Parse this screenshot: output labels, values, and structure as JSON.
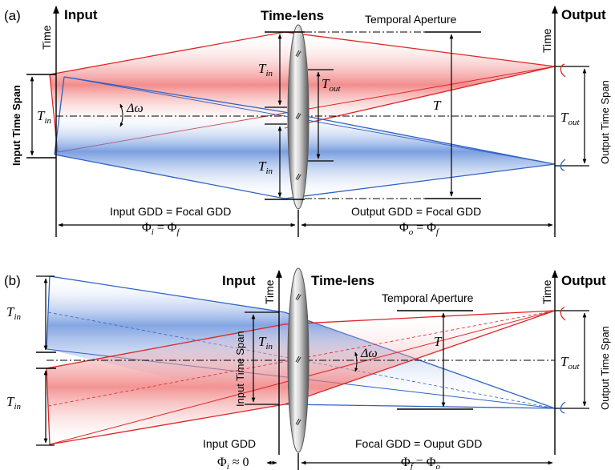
{
  "colors": {
    "red": "#e02424",
    "blue": "#2f62c4",
    "black": "#000000",
    "lens_light": "#eeeeee",
    "lens_dark": "#6a6a6a"
  },
  "panel_a": {
    "label": "(a)",
    "input_title": "Input",
    "time_label_left": "Time",
    "lens_title": "Time-lens",
    "aperture_label": "Temporal Aperture",
    "output_title": "Output",
    "time_label_right": "Time",
    "input_span_label": "Input Time Span",
    "output_span_label": "Output Time Span",
    "tin_main": "T",
    "tin_main_sub": "in",
    "tin_upper": "T",
    "tin_upper_sub": "in",
    "tin_lower": "T",
    "tin_lower_sub": "in",
    "tout_inner": "T",
    "tout_inner_sub": "out",
    "tout_right": "T",
    "tout_right_sub": "out",
    "t_aperture": "T",
    "delta_omega": "Δω",
    "left_gdd": "Input GDD = Focal GDD",
    "right_gdd": "Output GDD = Focal GDD",
    "left_phi_eq": "Φ",
    "left_phi_sub": "i",
    "left_phi_mid": " = Φ",
    "left_phi_sub2": "f",
    "right_phi_eq": "Φ",
    "right_phi_sub": "o",
    "right_phi_mid": " = Φ",
    "right_phi_sub2": "f"
  },
  "panel_b": {
    "label": "(b)",
    "input_title": "Input",
    "time_label_left": "Time",
    "lens_title": "Time-lens",
    "aperture_label": "Temporal Aperture",
    "output_title": "Output",
    "time_label_right": "Time",
    "input_span_label": "Input Time Span",
    "output_span_label": "Output Time Span",
    "tin_upper": "T",
    "tin_upper_sub": "in",
    "tin_lower": "T",
    "tin_lower_sub": "in",
    "tin_mid": "T",
    "tin_mid_sub": "in",
    "t_aperture": "T",
    "tout_right": "T",
    "tout_right_sub": "out",
    "delta_omega": "Δω",
    "left_gdd": "Input GDD",
    "right_gdd": "Focal GDD = Ouput GDD",
    "left_phi": "Φ",
    "left_phi_sub": "i",
    "left_phi_rest": " ≈ 0",
    "right_phi": "Φ",
    "right_phi_sub": "f",
    "right_phi_mid": " = Φ",
    "right_phi_sub2": "o"
  }
}
